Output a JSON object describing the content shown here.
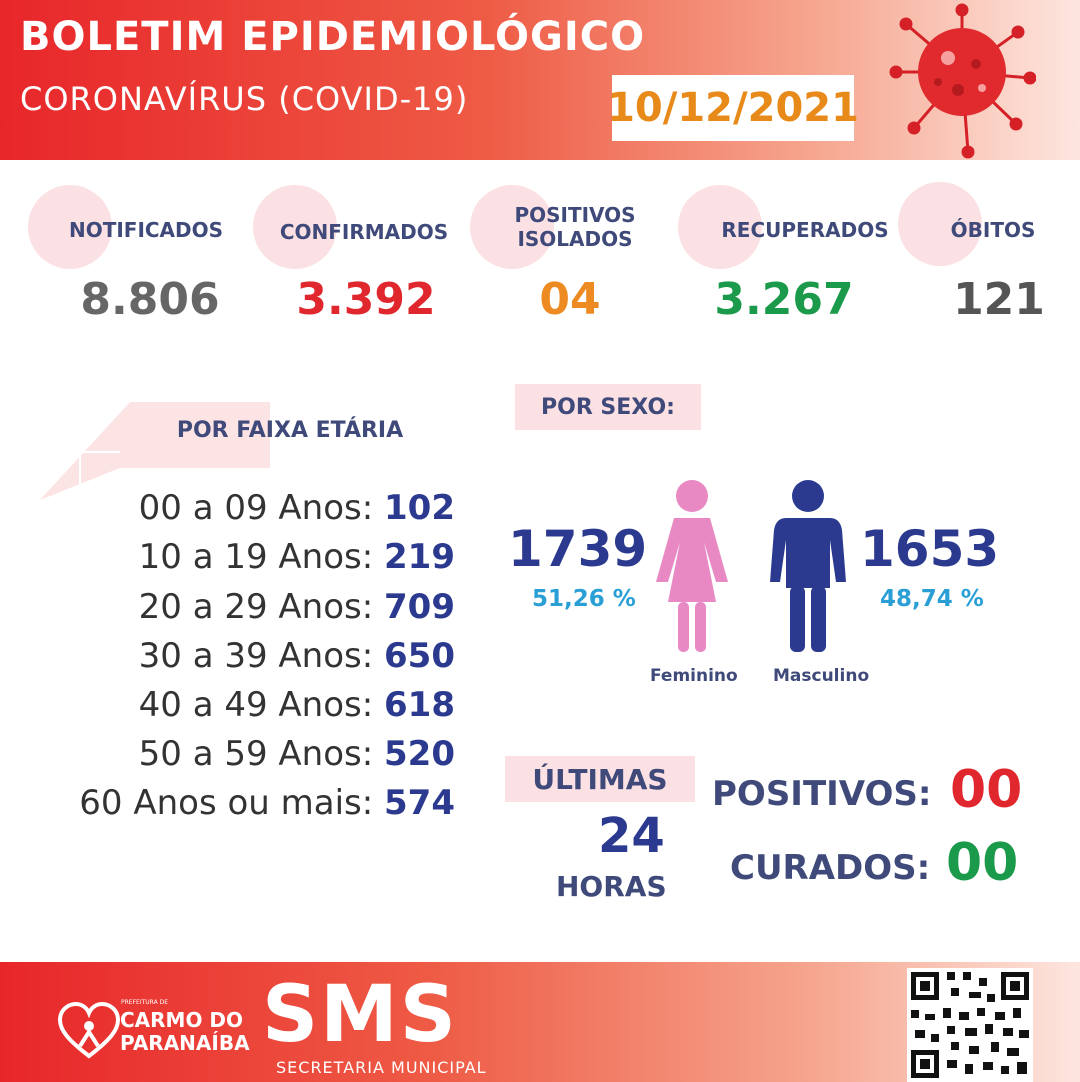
{
  "header": {
    "title": "BOLETIM EPIDEMIOLÓGICO",
    "subtitle": "CORONAVÍRUS (COVID-19)",
    "date": "10/12/2021"
  },
  "stats": [
    {
      "label_line1": "NOTIFICADOS",
      "label_line2": "",
      "value": "8.806",
      "color": "#666666"
    },
    {
      "label_line1": "CONFIRMADOS",
      "label_line2": "",
      "value": "3.392",
      "color": "#e0272d"
    },
    {
      "label_line1": "POSITIVOS",
      "label_line2": "ISOLADOS",
      "value": "04",
      "color": "#ee8a22"
    },
    {
      "label_line1": "RECUPERADOS",
      "label_line2": "",
      "value": "3.267",
      "color": "#1a9a4a"
    },
    {
      "label_line1": "ÓBITOS",
      "label_line2": "",
      "value": "121",
      "color": "#555555"
    }
  ],
  "age": {
    "heading": "POR FAIXA ETÁRIA",
    "rows": [
      {
        "label": "00 a 09 Anos:",
        "value": "102"
      },
      {
        "label": "10 a 19 Anos:",
        "value": "219"
      },
      {
        "label": "20 a 29 Anos:",
        "value": "709"
      },
      {
        "label": "30 a 39 Anos:",
        "value": "650"
      },
      {
        "label": "40 a 49 Anos:",
        "value": "618"
      },
      {
        "label": "50 a 59 Anos:",
        "value": "520"
      },
      {
        "label": "60 Anos ou mais:",
        "value": "574"
      }
    ]
  },
  "sex": {
    "heading": "POR SEXO:",
    "female": {
      "count": "1739",
      "percent": "51,26 %",
      "label": "Feminino",
      "color": "#e889c4"
    },
    "male": {
      "count": "1653",
      "percent": "48,74 %",
      "label": "Masculino",
      "color": "#2b3a8f"
    }
  },
  "last24": {
    "line1": "ÚLTIMAS",
    "line2": "24",
    "line3": "HORAS",
    "positivos_label": "POSITIVOS:",
    "positivos_value": "00",
    "positivos_color": "#e0272d",
    "curados_label": "CURADOS:",
    "curados_value": "00",
    "curados_color": "#1a9a4a"
  },
  "footer": {
    "prefeitura_small": "PREFEITURA DE",
    "city_line1": "CARMO DO",
    "city_line2": "PARANAÍBA",
    "sms": "SMS",
    "sms_sub": "SECRETARIA MUNICIPAL"
  }
}
